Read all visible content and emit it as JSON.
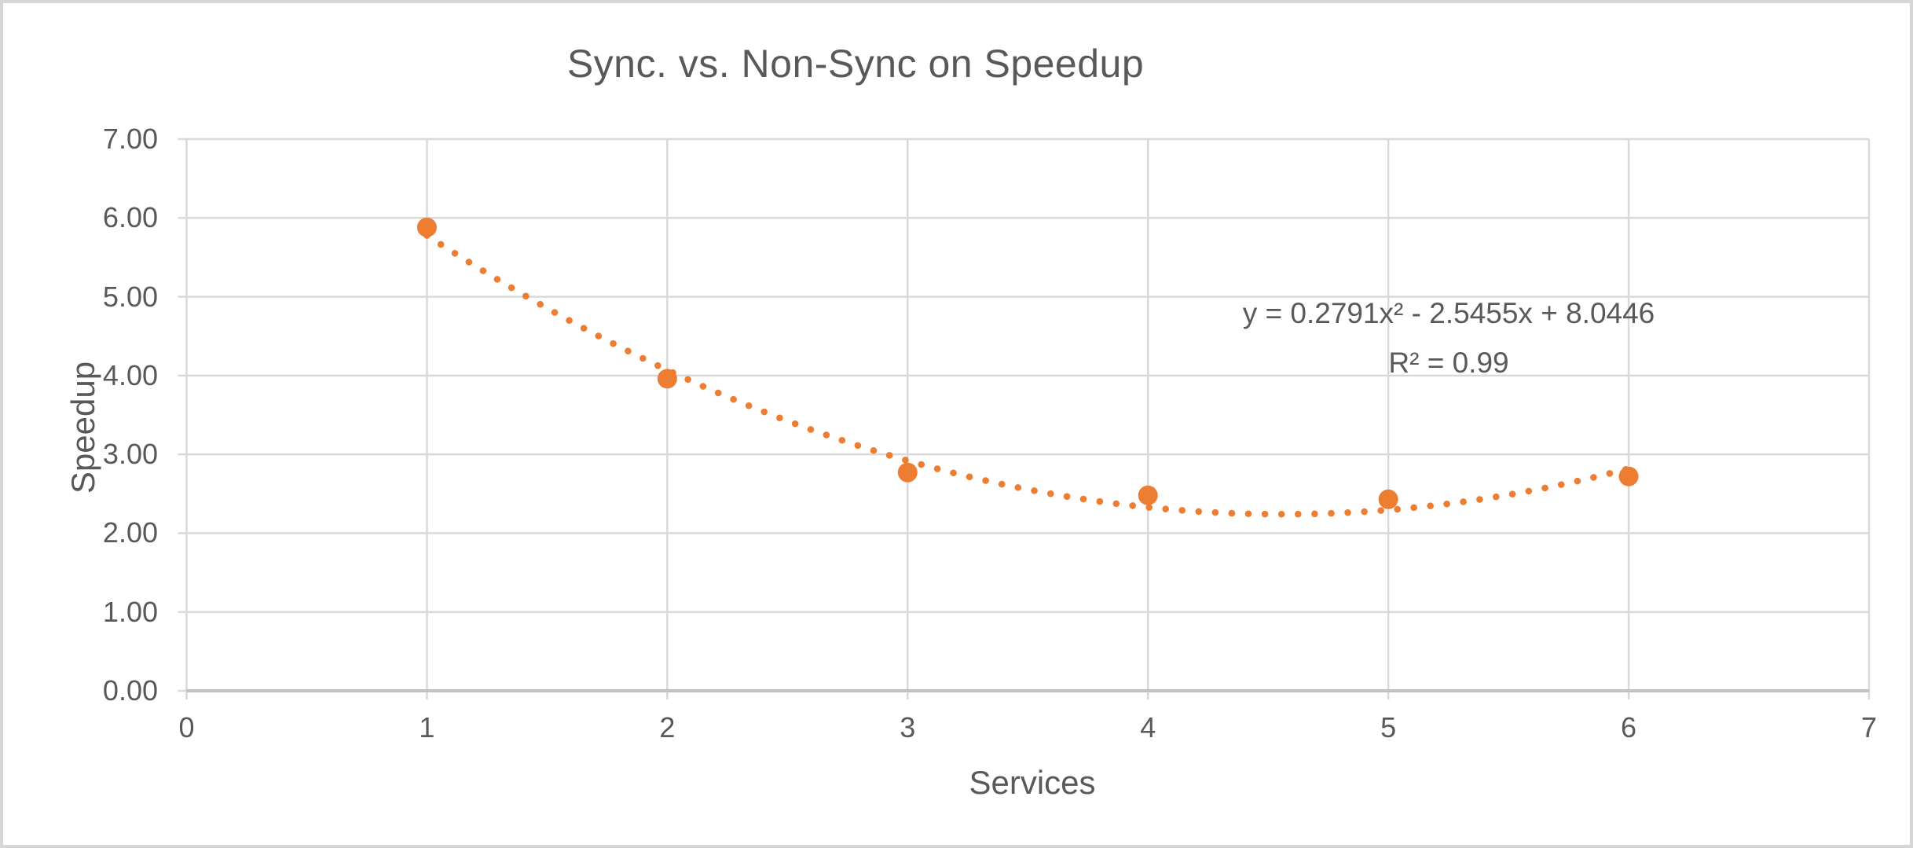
{
  "window": {
    "background_color": "#FFFFFF",
    "border_color": "#D6D6D6"
  },
  "colors": {
    "series_orange": "#ED7D31",
    "gridline": "#D9D9D9",
    "axis_line": "#C1C1C1",
    "text_gray": "#595959"
  },
  "chart_data": {
    "type": "scatter",
    "title": "Sync. vs. Non-Sync on Speedup",
    "xlabel": "Services",
    "ylabel": "Speedup",
    "x": [
      1,
      2,
      3,
      4,
      5,
      6
    ],
    "y": [
      5.88,
      3.96,
      2.77,
      2.48,
      2.43,
      2.72
    ],
    "xlim": [
      0,
      7
    ],
    "ylim": [
      0,
      7
    ],
    "x_ticks": [
      "0",
      "1",
      "2",
      "3",
      "4",
      "5",
      "6",
      "7"
    ],
    "y_ticks": [
      "0.00",
      "1.00",
      "2.00",
      "3.00",
      "4.00",
      "5.00",
      "6.00",
      "7.00"
    ],
    "grid": true,
    "legend": false,
    "marker_color": "#ED7D31",
    "trendline": {
      "type": "polynomial",
      "order": 2,
      "coefficients": [
        0.2791,
        -2.5455,
        8.0446
      ],
      "x_range": [
        1,
        6
      ],
      "style": "dotted",
      "color": "#ED7D31",
      "equation_label": "y = 0.2791x² - 2.5455x + 8.0446",
      "r_squared_label": "R² = 0.99"
    }
  }
}
